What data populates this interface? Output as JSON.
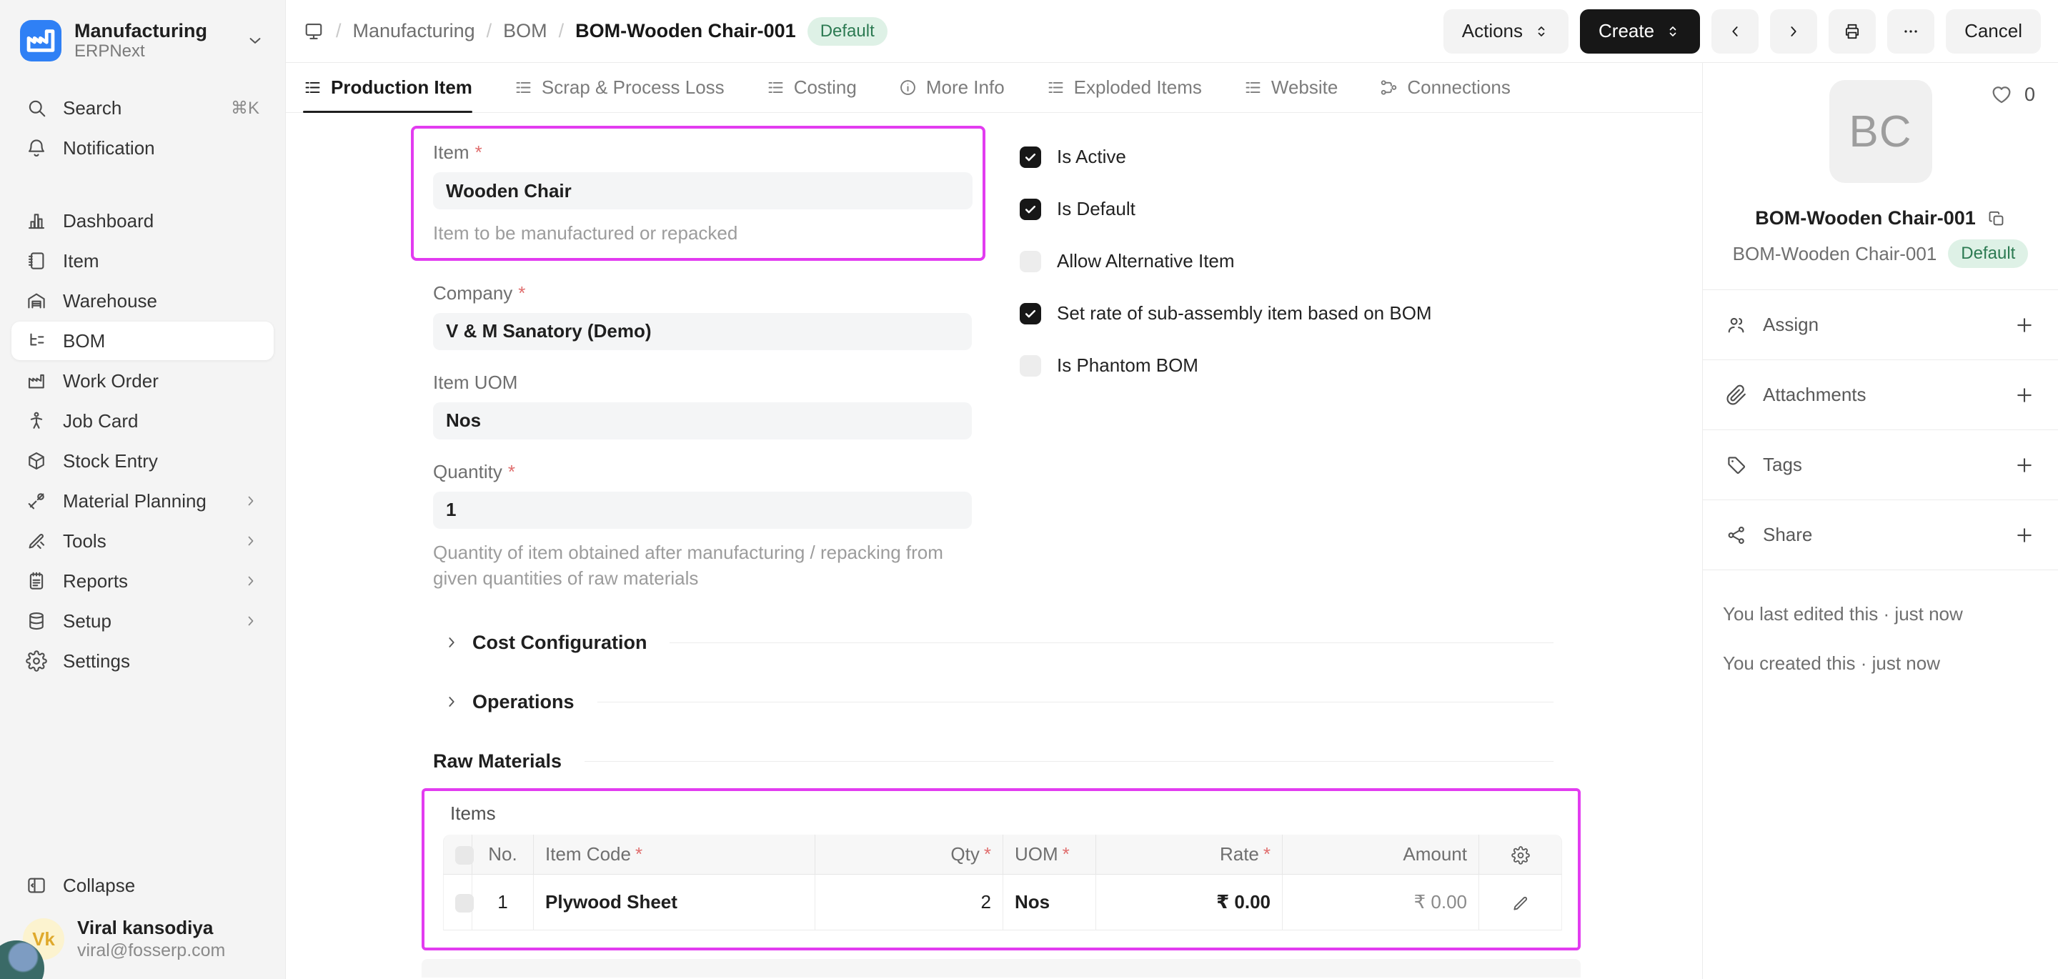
{
  "app": {
    "workspace": "Manufacturing",
    "product": "ERPNext"
  },
  "sidebar": {
    "top_items": [
      {
        "label": "Search",
        "icon": "search",
        "shortcut": "⌘K"
      },
      {
        "label": "Notification",
        "icon": "bell"
      }
    ],
    "items": [
      {
        "label": "Dashboard",
        "icon": "dashboard"
      },
      {
        "label": "Item",
        "icon": "item"
      },
      {
        "label": "Warehouse",
        "icon": "warehouse"
      },
      {
        "label": "BOM",
        "icon": "bom",
        "active": true
      },
      {
        "label": "Work Order",
        "icon": "workorder"
      },
      {
        "label": "Job Card",
        "icon": "jobcard"
      },
      {
        "label": "Stock Entry",
        "icon": "stock"
      },
      {
        "label": "Material Planning",
        "icon": "material",
        "expandable": true
      },
      {
        "label": "Tools",
        "icon": "toolsx",
        "expandable": true
      },
      {
        "label": "Reports",
        "icon": "reports",
        "expandable": true
      },
      {
        "label": "Setup",
        "icon": "setup",
        "expandable": true
      },
      {
        "label": "Settings",
        "icon": "settings"
      }
    ],
    "collapse_label": "Collapse",
    "user": {
      "initials": "Vk",
      "name": "Viral kansodiya",
      "email": "viral@fosserp.com"
    }
  },
  "header": {
    "breadcrumb": [
      {
        "label": "Manufacturing"
      },
      {
        "label": "BOM"
      }
    ],
    "current": "BOM-Wooden Chair-001",
    "separator": "/",
    "badge": "Default",
    "actions_label": "Actions",
    "create_label": "Create",
    "cancel_label": "Cancel"
  },
  "tabs": [
    {
      "label": "Production Item",
      "icon": "listtab",
      "active": true
    },
    {
      "label": "Scrap & Process Loss",
      "icon": "listtab"
    },
    {
      "label": "Costing",
      "icon": "listtab"
    },
    {
      "label": "More Info",
      "icon": "info"
    },
    {
      "label": "Exploded Items",
      "icon": "listtab"
    },
    {
      "label": "Website",
      "icon": "listtab"
    },
    {
      "label": "Connections",
      "icon": "connections"
    }
  ],
  "form": {
    "required_mark": "*",
    "fields": {
      "item": {
        "label": "Item",
        "value": "Wooden Chair",
        "description": "Item to be manufactured or repacked"
      },
      "company": {
        "label": "Company",
        "value": "V & M Sanatory (Demo)"
      },
      "item_uom": {
        "label": "Item UOM",
        "value": "Nos"
      },
      "quantity": {
        "label": "Quantity",
        "value": "1",
        "description": "Quantity of item obtained after manufacturing / repacking from given quantities of raw materials"
      }
    },
    "checkboxes": [
      {
        "label": "Is Active",
        "checked": true
      },
      {
        "label": "Is Default",
        "checked": true
      },
      {
        "label": "Allow Alternative Item",
        "checked": false
      },
      {
        "label": "Set rate of sub-assembly item based on BOM",
        "checked": true
      },
      {
        "label": "Is Phantom BOM",
        "checked": false
      }
    ],
    "collapsed_sections": [
      "Cost Configuration",
      "Operations"
    ],
    "raw_materials_label": "Raw Materials",
    "items_grid": {
      "label": "Items",
      "columns": [
        {
          "key": "no",
          "label": "No.",
          "required": false,
          "align": "center"
        },
        {
          "key": "item_code",
          "label": "Item Code",
          "required": true,
          "align": "left"
        },
        {
          "key": "qty",
          "label": "Qty",
          "required": true,
          "align": "right"
        },
        {
          "key": "uom",
          "label": "UOM",
          "required": true,
          "align": "left"
        },
        {
          "key": "rate",
          "label": "Rate",
          "required": true,
          "align": "right"
        },
        {
          "key": "amount",
          "label": "Amount",
          "required": false,
          "align": "right"
        }
      ],
      "rows": [
        {
          "no": "1",
          "item_code": "Plywood Sheet",
          "qty": "2",
          "uom": "Nos",
          "rate": "₹ 0.00",
          "amount": "₹ 0.00"
        }
      ]
    }
  },
  "side_panel": {
    "likes_count": "0",
    "avatar_initials": "BC",
    "title": "BOM-Wooden Chair-001",
    "subtitle": "BOM-Wooden Chair-001",
    "badge": "Default",
    "sections": [
      {
        "label": "Assign",
        "icon": "users"
      },
      {
        "label": "Attachments",
        "icon": "paperclip"
      },
      {
        "label": "Tags",
        "icon": "tag"
      },
      {
        "label": "Share",
        "icon": "share"
      }
    ],
    "activity": [
      "You last edited this · just now",
      "You created this · just now"
    ]
  }
}
